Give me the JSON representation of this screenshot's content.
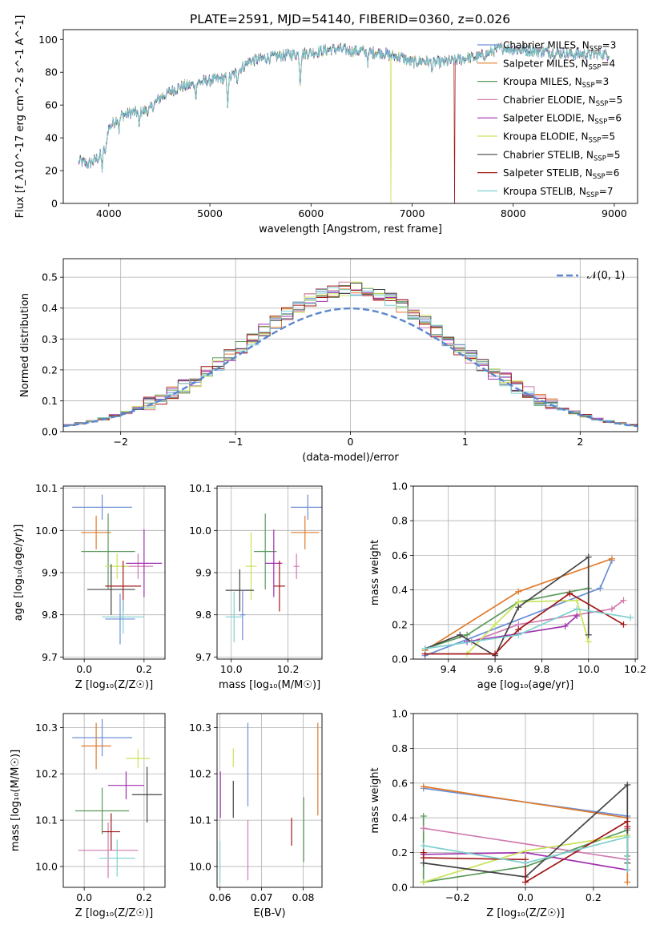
{
  "palette": [
    "#6b8fd6",
    "#e07a2a",
    "#5a9a5a",
    "#d07ab0",
    "#a030b0",
    "#c8e35a",
    "#444444",
    "#a01818",
    "#7fd0d0"
  ],
  "chart_data": [
    {
      "id": "spectrum",
      "type": "line",
      "title": "PLATE=2591, MJD=54140, FIBERID=0360, z=0.026",
      "xlabel": "wavelength [Angstrom, rest frame]",
      "ylabel": "Flux [f_λ10^-17 erg cm^-2 s^-1 A^-1]",
      "xlim": [
        3550,
        9230
      ],
      "ylim": [
        0,
        106
      ],
      "xticks": [
        4000,
        5000,
        6000,
        7000,
        8000,
        9000
      ],
      "yticks": [
        0,
        20,
        40,
        60,
        80,
        100
      ],
      "legend": "top-right",
      "continuum": {
        "x": [
          3700,
          3800,
          3900,
          3950,
          4000,
          4100,
          4200,
          4300,
          4400,
          4500,
          4600,
          4700,
          4800,
          4900,
          5000,
          5100,
          5200,
          5300,
          5400,
          5500,
          5600,
          5700,
          5800,
          5900,
          6000,
          6100,
          6200,
          6300,
          6400,
          6500,
          6600,
          6700,
          6800,
          6900,
          7000,
          7100,
          7200,
          7300,
          7400,
          7500,
          7600,
          7700,
          7800,
          7900,
          8000,
          8200,
          8400,
          8600,
          8800,
          8950
        ],
        "y": [
          26,
          24,
          28,
          33,
          46,
          53,
          55,
          56,
          57,
          64,
          68,
          71,
          72,
          74,
          75,
          76,
          77,
          82,
          87,
          88,
          89,
          90,
          91,
          91,
          92,
          93,
          94,
          94,
          93,
          93,
          92,
          92,
          90,
          89,
          86,
          87,
          86,
          86,
          87,
          88,
          89,
          90,
          93,
          95,
          94,
          93,
          92,
          91,
          91,
          91
        ]
      },
      "absorption_features": [
        {
          "x": 3934,
          "depth": 10
        },
        {
          "x": 3969,
          "depth": 8
        },
        {
          "x": 4102,
          "depth": 8
        },
        {
          "x": 4300,
          "depth": 9
        },
        {
          "x": 4861,
          "depth": 7
        },
        {
          "x": 5175,
          "depth": 18
        },
        {
          "x": 5270,
          "depth": 5
        },
        {
          "x": 5893,
          "depth": 18
        },
        {
          "x": 6563,
          "depth": 6
        },
        {
          "x": 7200,
          "depth": 4
        }
      ],
      "legend_entries": [
        {
          "name": "Chabrier MILES, N",
          "sub": "SSP",
          "suffix": "=3",
          "glitch": null
        },
        {
          "name": "Salpeter MILES, N",
          "sub": "SSP",
          "suffix": "=4",
          "glitch": null
        },
        {
          "name": "Kroupa MILES, N",
          "sub": "SSP",
          "suffix": "=3",
          "glitch": null
        },
        {
          "name": "Chabrier ELODIE, N",
          "sub": "SSP",
          "suffix": "=5",
          "glitch": null
        },
        {
          "name": "Salpeter ELODIE, N",
          "sub": "SSP",
          "suffix": "=6",
          "glitch": null
        },
        {
          "name": "Kroupa ELODIE, N",
          "sub": "SSP",
          "suffix": "=5",
          "glitch": 6790
        },
        {
          "name": "Chabrier STELIB, N",
          "sub": "SSP",
          "suffix": "=5",
          "glitch": null
        },
        {
          "name": "Salpeter STELIB, N",
          "sub": "SSP",
          "suffix": "=6",
          "glitch": 7420
        },
        {
          "name": "Kroupa STELIB, N",
          "sub": "SSP",
          "suffix": "=7",
          "glitch": null
        }
      ]
    },
    {
      "id": "residuals",
      "type": "line",
      "xlabel": "(data-model)/error",
      "ylabel": "Normed distribution",
      "xlim": [
        -2.5,
        2.5
      ],
      "ylim": [
        0,
        0.56
      ],
      "xticks": [
        -2,
        -1,
        0,
        1,
        2
      ],
      "yticks": [
        0.0,
        0.1,
        0.2,
        0.3,
        0.4,
        0.5
      ],
      "grid": true,
      "legend": "top-right",
      "gaussian_label": "𝒩(0, 1)",
      "bin_width": 0.1,
      "bin_start": -2.5,
      "series_count": 9
    },
    {
      "id": "age-vs-Z",
      "type": "scatter",
      "xlabel": "Z [log₁₀(Z/Z☉)]",
      "ylabel": "age  [log₁₀(age/yr)]",
      "xlim": [
        -0.07,
        0.27
      ],
      "ylim": [
        9.695,
        10.105
      ],
      "xticks": [
        0.0,
        0.2
      ],
      "yticks": [
        9.7,
        9.8,
        9.9,
        10.0,
        10.1
      ],
      "grid": true,
      "points": [
        {
          "x": 0.06,
          "y": 10.055,
          "xerr": 0.1,
          "yerr": 0.03
        },
        {
          "x": 0.04,
          "y": 9.995,
          "xerr": 0.05,
          "yerr": 0.04
        },
        {
          "x": 0.08,
          "y": 9.95,
          "xerr": 0.09,
          "yerr": 0.09
        },
        {
          "x": 0.18,
          "y": 9.915,
          "xerr": 0.05,
          "yerr": 0.03
        },
        {
          "x": 0.2,
          "y": 9.922,
          "xerr": 0.06,
          "yerr": 0.08
        },
        {
          "x": 0.11,
          "y": 9.915,
          "xerr": 0.04,
          "yerr": 0.03
        },
        {
          "x": 0.09,
          "y": 9.86,
          "xerr": 0.08,
          "yerr": 0.06
        },
        {
          "x": 0.13,
          "y": 9.868,
          "xerr": 0.06,
          "yerr": 0.06
        },
        {
          "x": 0.13,
          "y": 9.795,
          "xerr": 0.07,
          "yerr": 0.04
        },
        {
          "x": 0.12,
          "y": 9.79,
          "xerr": 0.05,
          "yerr": 0.06
        }
      ]
    },
    {
      "id": "age-vs-mass",
      "type": "scatter",
      "xlabel": "mass [log₁₀(M/M☉)]",
      "ylabel": "",
      "xlim": [
        9.95,
        10.32
      ],
      "ylim": [
        9.695,
        10.105
      ],
      "xticks": [
        10.0,
        10.2
      ],
      "yticks": [
        9.7,
        9.8,
        9.9,
        10.0,
        10.1
      ],
      "grid": true,
      "points": [
        {
          "x": 10.27,
          "y": 10.055,
          "xerr": 0.06,
          "yerr": 0.03
        },
        {
          "x": 10.26,
          "y": 9.995,
          "xerr": 0.05,
          "yerr": 0.04
        },
        {
          "x": 10.12,
          "y": 9.95,
          "xerr": 0.04,
          "yerr": 0.09
        },
        {
          "x": 10.23,
          "y": 9.915,
          "xerr": 0.01,
          "yerr": 0.03
        },
        {
          "x": 10.15,
          "y": 9.922,
          "xerr": 0.03,
          "yerr": 0.08
        },
        {
          "x": 10.07,
          "y": 9.915,
          "xerr": 0.02,
          "yerr": 0.08
        },
        {
          "x": 10.03,
          "y": 9.858,
          "xerr": 0.05,
          "yerr": 0.05
        },
        {
          "x": 10.17,
          "y": 9.868,
          "xerr": 0.02,
          "yerr": 0.06
        },
        {
          "x": 10.01,
          "y": 9.795,
          "xerr": 0.03,
          "yerr": 0.06
        },
        {
          "x": 10.04,
          "y": 9.8,
          "xerr": 0.01,
          "yerr": 0.06
        }
      ]
    },
    {
      "id": "weight-vs-age",
      "type": "line",
      "xlabel": "age  [log₁₀(age/yr)]",
      "ylabel": "mass weight",
      "xlim": [
        9.25,
        10.21
      ],
      "ylim": [
        0,
        1.0
      ],
      "xticks": [
        9.4,
        9.6,
        9.8,
        10.0,
        10.2
      ],
      "yticks": [
        0.0,
        0.2,
        0.4,
        0.6,
        0.8,
        1.0
      ],
      "grid": true,
      "series": [
        {
          "x": [
            9.3,
            10.05,
            10.1
          ],
          "y": [
            0.02,
            0.41,
            0.57
          ]
        },
        {
          "x": [
            9.3,
            9.7,
            10.1
          ],
          "y": [
            0.05,
            0.39,
            0.58
          ]
        },
        {
          "x": [
            9.3,
            9.48,
            9.7,
            10.0
          ],
          "y": [
            0.06,
            0.14,
            0.33,
            0.41
          ]
        },
        {
          "x": [
            9.5,
            9.7,
            10.1,
            10.15
          ],
          "y": [
            0.1,
            0.2,
            0.29,
            0.34
          ]
        },
        {
          "x": [
            9.48,
            9.9,
            9.95
          ],
          "y": [
            0.1,
            0.19,
            0.25
          ]
        },
        {
          "x": [
            9.48,
            9.6,
            9.7,
            9.95,
            10.0
          ],
          "y": [
            0.03,
            0.2,
            0.33,
            0.34,
            0.1
          ]
        },
        {
          "x": [
            9.3,
            9.45,
            9.6,
            9.7,
            10.0,
            10.0
          ],
          "y": [
            0.06,
            0.14,
            0.02,
            0.3,
            0.59,
            0.14
          ]
        },
        {
          "x": [
            9.3,
            9.6,
            9.7,
            9.92,
            10.15
          ],
          "y": [
            0.03,
            0.03,
            0.17,
            0.38,
            0.2
          ]
        },
        {
          "x": [
            9.3,
            9.7,
            9.95,
            10.18
          ],
          "y": [
            0.06,
            0.14,
            0.29,
            0.24
          ]
        }
      ]
    },
    {
      "id": "mass-vs-Z",
      "type": "scatter",
      "xlabel": "Z [log₁₀(Z/Z☉)]",
      "ylabel": "mass [log₁₀(M/M☉)]",
      "xlim": [
        -0.07,
        0.27
      ],
      "ylim": [
        9.955,
        10.33
      ],
      "xticks": [
        0.0,
        0.2
      ],
      "yticks": [
        10.0,
        10.1,
        10.2,
        10.3
      ],
      "grid": true,
      "points": [
        {
          "x": 0.06,
          "y": 10.278,
          "xerr": 0.1,
          "yerr": 0.04
        },
        {
          "x": 0.04,
          "y": 10.26,
          "xerr": 0.05,
          "yerr": 0.05
        },
        {
          "x": 0.06,
          "y": 10.12,
          "xerr": 0.09,
          "yerr": 0.05
        },
        {
          "x": 0.08,
          "y": 10.035,
          "xerr": 0.1,
          "yerr": 0.06
        },
        {
          "x": 0.14,
          "y": 10.175,
          "xerr": 0.06,
          "yerr": 0.03
        },
        {
          "x": 0.18,
          "y": 10.233,
          "xerr": 0.04,
          "yerr": 0.02
        },
        {
          "x": 0.21,
          "y": 10.155,
          "xerr": 0.05,
          "yerr": 0.06
        },
        {
          "x": 0.09,
          "y": 10.075,
          "xerr": 0.03,
          "yerr": 0.04
        },
        {
          "x": 0.11,
          "y": 10.018,
          "xerr": 0.06,
          "yerr": 0.04
        }
      ]
    },
    {
      "id": "mass-vs-ebv",
      "type": "scatter",
      "xlabel": "E(B-V)",
      "ylabel": "",
      "xlim": [
        0.0593,
        0.0845
      ],
      "ylim": [
        9.955,
        10.33
      ],
      "xticks": [
        0.06,
        0.07,
        0.08
      ],
      "yticks": [
        10.0,
        10.1,
        10.2,
        10.3
      ],
      "grid": true,
      "points": [
        {
          "x": 0.0667,
          "y": 10.22,
          "xerr": 0,
          "yerr": 0.09
        },
        {
          "x": 0.0835,
          "y": 10.21,
          "xerr": 0,
          "yerr": 0.1
        },
        {
          "x": 0.0801,
          "y": 10.08,
          "xerr": 0,
          "yerr": 0.07
        },
        {
          "x": 0.0667,
          "y": 10.035,
          "xerr": 0,
          "yerr": 0.065
        },
        {
          "x": 0.0601,
          "y": 10.155,
          "xerr": 0,
          "yerr": 0.05
        },
        {
          "x": 0.0632,
          "y": 10.235,
          "xerr": 0,
          "yerr": 0.02
        },
        {
          "x": 0.0632,
          "y": 10.145,
          "xerr": 0,
          "yerr": 0.04
        },
        {
          "x": 0.0772,
          "y": 10.075,
          "xerr": 0,
          "yerr": 0.03
        },
        {
          "x": 0.06,
          "y": 10.01,
          "xerr": 0,
          "yerr": 0.045
        }
      ]
    },
    {
      "id": "weight-vs-Z",
      "type": "line",
      "xlabel": "Z [log₁₀(Z/Z☉)]",
      "ylabel": "mass weight",
      "xlim": [
        -0.33,
        0.33
      ],
      "ylim": [
        0,
        1.0
      ],
      "xticks": [
        -0.2,
        0.0,
        0.2
      ],
      "yticks": [
        0.0,
        0.2,
        0.4,
        0.6,
        0.8,
        1.0
      ],
      "grid": true,
      "series": [
        {
          "x": [
            -0.3,
            0.3
          ],
          "y": [
            0.57,
            0.41
          ]
        },
        {
          "x": [
            -0.3,
            0.3,
            0.3
          ],
          "y": [
            0.58,
            0.4,
            0.03
          ]
        },
        {
          "x": [
            -0.3,
            -0.3,
            0.0,
            0.3,
            0.3
          ],
          "y": [
            0.41,
            0.03,
            0.12,
            0.33,
            0.18
          ]
        },
        {
          "x": [
            -0.3,
            0.3,
            0.3
          ],
          "y": [
            0.34,
            0.16,
            0.34
          ]
        },
        {
          "x": [
            -0.3,
            0.0,
            0.3
          ],
          "y": [
            0.19,
            0.2,
            0.1
          ]
        },
        {
          "x": [
            -0.3,
            0.0,
            0.3
          ],
          "y": [
            0.03,
            0.21,
            0.3
          ]
        },
        {
          "x": [
            -0.3,
            0.0,
            0.3,
            0.3
          ],
          "y": [
            0.14,
            0.06,
            0.59,
            0.14
          ]
        },
        {
          "x": [
            -0.3,
            -0.3,
            0.0,
            0.0,
            0.3,
            0.3
          ],
          "y": [
            0.2,
            0.17,
            0.16,
            0.03,
            0.38,
            0.35
          ]
        },
        {
          "x": [
            -0.3,
            0.0,
            0.3,
            0.3
          ],
          "y": [
            0.24,
            0.14,
            0.29,
            0.1
          ]
        }
      ]
    }
  ]
}
